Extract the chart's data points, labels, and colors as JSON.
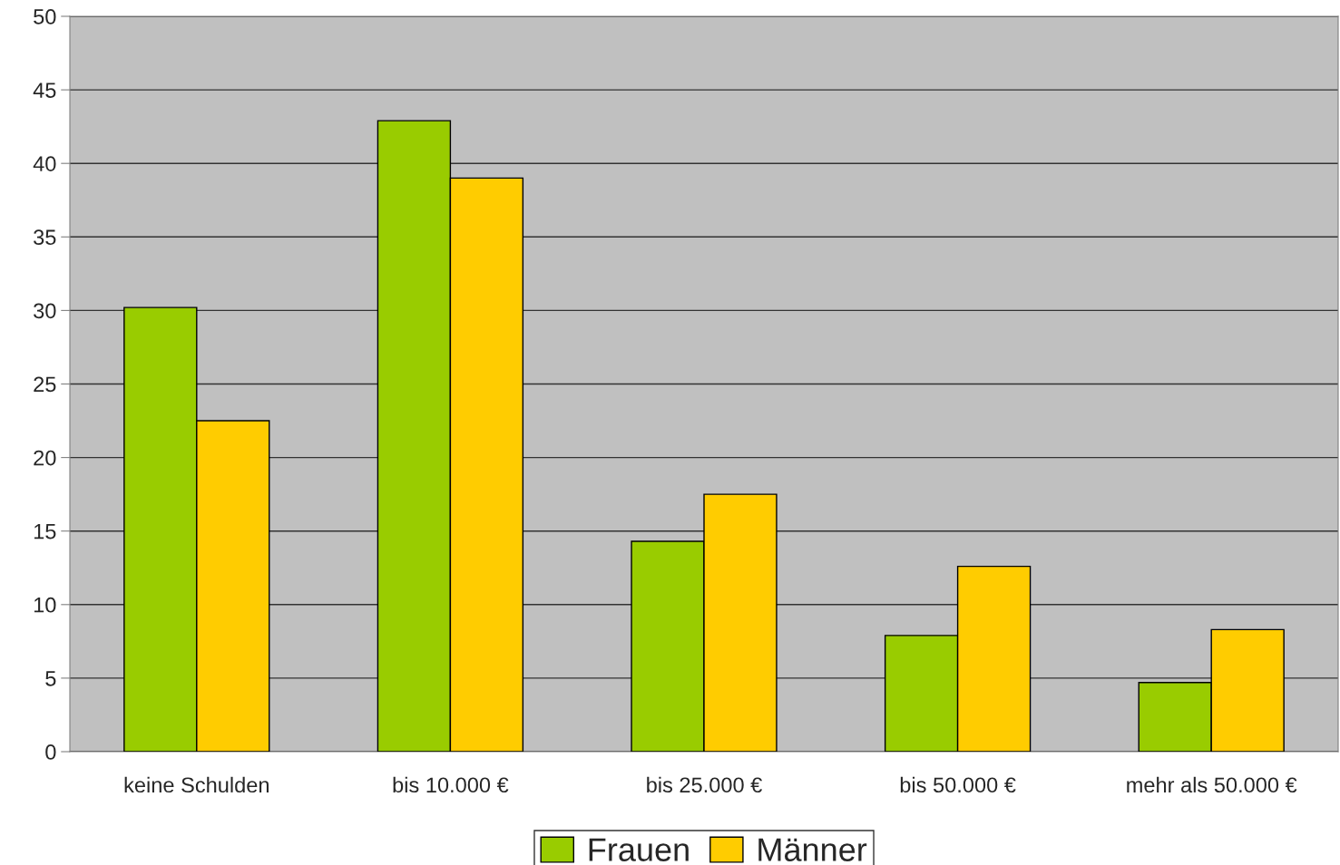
{
  "chart_data": {
    "type": "bar",
    "categories": [
      "keine Schulden",
      "bis 10.000 €",
      "bis 25.000 €",
      "bis 50.000 €",
      "mehr als 50.000 €"
    ],
    "series": [
      {
        "name": "Frauen",
        "color": "#99cc00",
        "values": [
          30.2,
          42.9,
          14.3,
          7.9,
          4.7
        ]
      },
      {
        "name": "Männer",
        "color": "#ffcc00",
        "values": [
          22.5,
          39.0,
          17.5,
          12.6,
          8.3
        ]
      }
    ],
    "ylim": [
      0,
      50
    ],
    "yticks": [
      0,
      5,
      10,
      15,
      20,
      25,
      30,
      35,
      40,
      45,
      50
    ],
    "grid": "y",
    "legend": "bottom"
  }
}
